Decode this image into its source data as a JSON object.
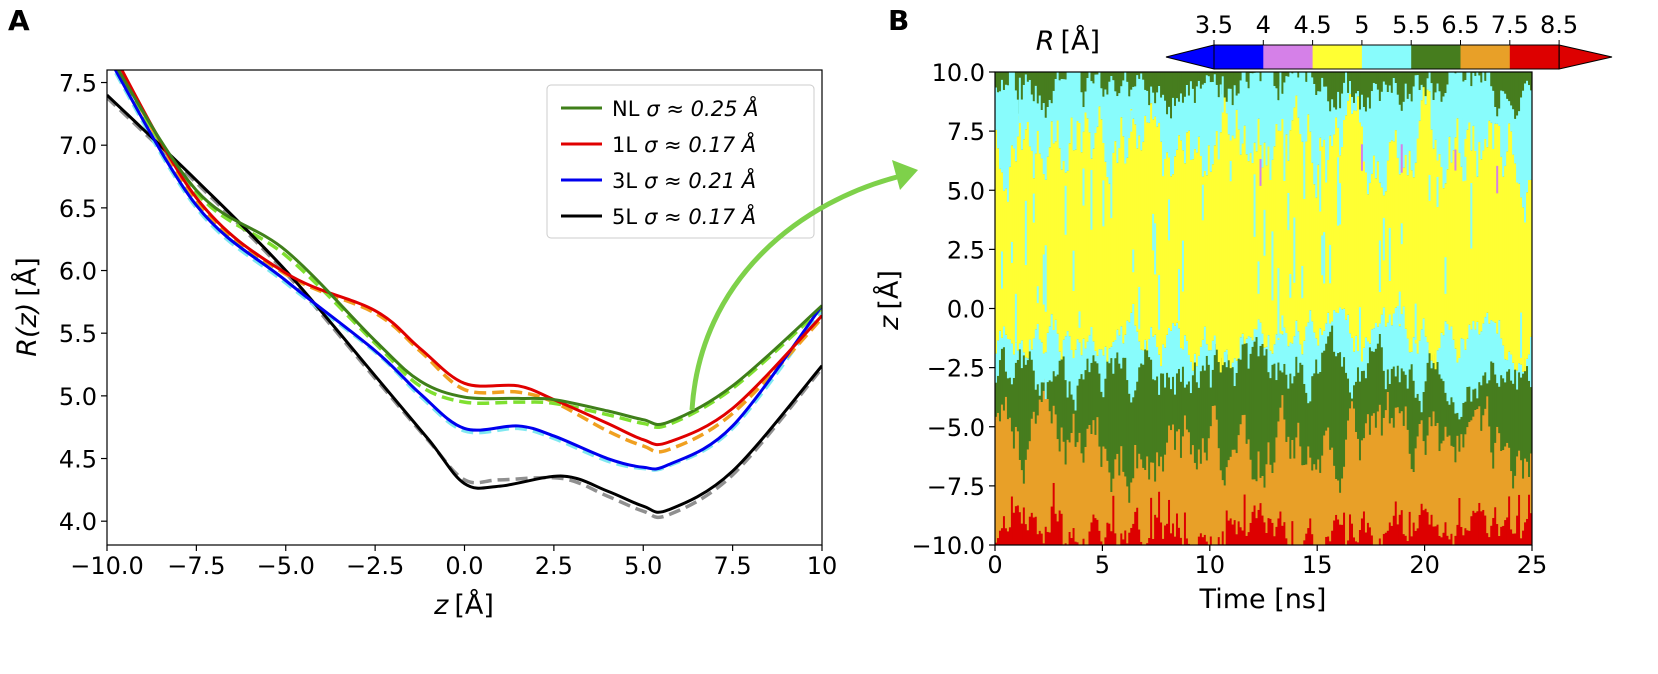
{
  "chart_data": [
    {
      "panel_label": "A",
      "type": "line",
      "xlabel_var": "z",
      "xlabel_unit": "[Å]",
      "ylabel_var": "R(z)",
      "ylabel_unit": "[Å]",
      "xlim": [
        -10,
        10
      ],
      "ylim": [
        3.81,
        7.6
      ],
      "xticks": [
        "−10.0",
        "−7.5",
        "−5.0",
        "−2.5",
        "0.0",
        "2.5",
        "5.0",
        "7.5",
        "10"
      ],
      "xtick_values": [
        -10,
        -7.5,
        -5,
        -2.5,
        0,
        2.5,
        5,
        7.5,
        10
      ],
      "yticks": [
        "4.0",
        "4.5",
        "5.0",
        "5.5",
        "6.0",
        "6.5",
        "7.0",
        "7.5"
      ],
      "ytick_values": [
        4.0,
        4.5,
        5.0,
        5.5,
        6.0,
        6.5,
        7.0,
        7.5
      ],
      "legend_position": "top-right",
      "series": [
        {
          "name": "NL",
          "sigma": "σ ≈ 0.25 Å",
          "color": "#3f7f1a",
          "fit_color": "#7fe030",
          "x": [
            -10,
            -7.5,
            -5,
            -2.5,
            -1.25,
            0,
            1.5,
            2.5,
            4,
            5,
            5.7,
            7.5,
            10
          ],
          "y": [
            7.75,
            6.64,
            6.16,
            5.44,
            5.12,
            4.99,
            4.98,
            4.97,
            4.88,
            4.81,
            4.79,
            5.08,
            5.72
          ],
          "fit_y": [
            7.72,
            6.62,
            6.12,
            5.42,
            5.08,
            4.95,
            4.95,
            4.94,
            4.85,
            4.78,
            4.77,
            5.06,
            5.7
          ]
        },
        {
          "name": "1L",
          "sigma": "σ ≈ 0.17 Å",
          "color": "#e00000",
          "fit_color": "#f0a020",
          "x": [
            -10,
            -7.5,
            -5,
            -2.5,
            -1.25,
            0,
            1.5,
            2.5,
            4,
            5,
            5.7,
            7.5,
            10
          ],
          "y": [
            7.82,
            6.58,
            5.98,
            5.68,
            5.38,
            5.1,
            5.08,
            4.97,
            4.78,
            4.65,
            4.63,
            4.9,
            5.64
          ],
          "fit_y": [
            7.8,
            6.56,
            5.97,
            5.66,
            5.36,
            5.05,
            5.03,
            4.95,
            4.72,
            4.6,
            4.57,
            4.86,
            5.62
          ]
        },
        {
          "name": "3L",
          "sigma": "σ ≈ 0.21 Å",
          "color": "#0000ee",
          "fit_color": "#80e8f0",
          "x": [
            -10,
            -7.5,
            -5,
            -2.5,
            -1.25,
            0,
            1.5,
            2.5,
            4,
            5,
            5.7,
            7.5,
            10
          ],
          "y": [
            7.72,
            6.52,
            5.92,
            5.36,
            5.02,
            4.74,
            4.76,
            4.68,
            4.5,
            4.43,
            4.45,
            4.76,
            5.72
          ],
          "fit_y": [
            7.7,
            6.5,
            5.9,
            5.35,
            5.0,
            4.72,
            4.74,
            4.66,
            4.48,
            4.42,
            4.44,
            4.74,
            5.68
          ]
        },
        {
          "name": "5L",
          "sigma": "σ ≈ 0.17 Å",
          "color": "#000000",
          "fit_color": "#909090",
          "x": [
            -10,
            -7.5,
            -5,
            -2.5,
            -1.0,
            0,
            1.0,
            2.75,
            4,
            5,
            5.7,
            7.5,
            10
          ],
          "y": [
            7.4,
            6.72,
            6.0,
            5.16,
            4.65,
            4.3,
            4.28,
            4.36,
            4.24,
            4.12,
            4.09,
            4.4,
            5.24
          ],
          "fit_y": [
            7.38,
            6.7,
            5.98,
            5.14,
            4.64,
            4.33,
            4.33,
            4.34,
            4.2,
            4.08,
            4.05,
            4.37,
            5.22
          ]
        }
      ]
    },
    {
      "panel_label": "B",
      "type": "heatmap",
      "xlabel": "Time [ns]",
      "ylabel_var": "z",
      "ylabel_unit": "[Å]",
      "xlim": [
        0,
        25
      ],
      "ylim": [
        -10,
        10
      ],
      "xticks": [
        "0",
        "5",
        "10",
        "15",
        "20",
        "25"
      ],
      "xtick_values": [
        0,
        5,
        10,
        15,
        20,
        25
      ],
      "yticks": [
        "−10.0",
        "−7.5",
        "−5.0",
        "−2.5",
        "0.0",
        "2.5",
        "5.0",
        "7.5",
        "10.0"
      ],
      "ytick_values": [
        -10,
        -7.5,
        -5,
        -2.5,
        0,
        2.5,
        5,
        7.5,
        10
      ],
      "colorbar": {
        "label_var": "R",
        "label_unit": "[Å]",
        "ticks": [
          "3.5",
          "4",
          "4.5",
          "5",
          "5.5",
          "6.5",
          "7.5",
          "8.5"
        ],
        "bins": [
          {
            "range": [
              3.5,
              4
            ],
            "color": "#0000ff"
          },
          {
            "range": [
              4,
              4.5
            ],
            "color": "#d580e8"
          },
          {
            "range": [
              4.5,
              5
            ],
            "color": "#ffff33"
          },
          {
            "range": [
              5,
              5.5
            ],
            "color": "#88fcfc"
          },
          {
            "range": [
              5.5,
              6.5
            ],
            "color": "#467d1e"
          },
          {
            "range": [
              6.5,
              7.5
            ],
            "color": "#e8a028"
          },
          {
            "range": [
              7.5,
              8.5
            ],
            "color": "#dd0000"
          }
        ],
        "extend": "both"
      },
      "band_profile": {
        "description_bands_bottom_to_top": [
          "7.5-8.5",
          "6.5-7.5",
          "5.5-6.5",
          "5-5.5",
          "4.5-5",
          "5-5.5",
          "5.5-6.5"
        ],
        "time": [
          0,
          2.5,
          5,
          7.5,
          10,
          12.5,
          15,
          17.5,
          20,
          22.5,
          25
        ],
        "red_top": [
          -9.3,
          -9.5,
          -9.4,
          -9.6,
          -9.5,
          -9.4,
          -9.6,
          -9.5,
          -9.0,
          -9.3,
          -9.5
        ],
        "orange_top": [
          -5.5,
          -5.8,
          -6.2,
          -5.8,
          -5.5,
          -6.3,
          -6.0,
          -5.2,
          -5.0,
          -5.6,
          -6.2
        ],
        "green_top": [
          -2.8,
          -3.2,
          -3.0,
          -2.8,
          -3.0,
          -2.6,
          -2.5,
          -2.4,
          -2.9,
          -3.0,
          -3.0
        ],
        "cyan_top": [
          -1.5,
          -1.2,
          -1.6,
          -1.3,
          -1.8,
          -1.0,
          -1.2,
          -1.5,
          -1.3,
          -1.6,
          -1.5
        ],
        "yellow_top": [
          7.0,
          6.5,
          7.5,
          7.2,
          6.8,
          7.8,
          7.0,
          6.5,
          7.2,
          6.8,
          7.0
        ],
        "cyan2_top": [
          9.3,
          9.0,
          9.5,
          9.4,
          9.0,
          9.6,
          9.2,
          8.8,
          9.4,
          9.2,
          9.3
        ]
      }
    }
  ],
  "annotations": {
    "arrow_color": "#7ed14a"
  }
}
